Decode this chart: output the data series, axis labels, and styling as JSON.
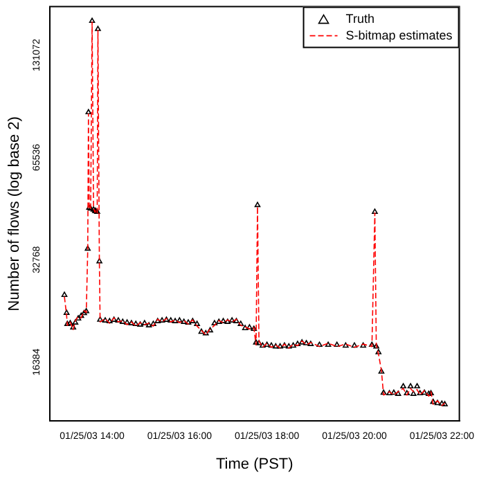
{
  "chart_data": {
    "type": "line",
    "xlabel": "Time (PST)",
    "ylabel": "Number of flows (log base 2)",
    "log": "y",
    "legend": "top right",
    "grid": false,
    "xlim": [
      "--01-25T13:02",
      "--01-25T22:24"
    ],
    "xticks": [
      {
        "value": "--01-25T14:00",
        "label": "01/25/03 14:00"
      },
      {
        "value": "--01-25T16:00",
        "label": "01/25/03 16:00"
      },
      {
        "value": "--01-25T18:00",
        "label": "01/25/03 18:00"
      },
      {
        "value": "--01-25T20:00",
        "label": "01/25/03 20:00"
      },
      {
        "value": "--01-25T22:00",
        "label": "01/25/03 22:00"
      }
    ],
    "ylim": [
      11000,
      182000
    ],
    "yticks": [
      16384,
      32768,
      65536,
      131072
    ],
    "x": [
      "--01-25T13:22",
      "--01-25T13:25",
      "--01-25T13:26",
      "--01-25T13:30",
      "--01-25T13:34",
      "--01-25T13:37",
      "--01-25T13:41",
      "--01-25T13:45",
      "--01-25T13:49",
      "--01-25T13:52",
      "--01-25T13:54",
      "--01-25T13:55",
      "--01-25T13:56",
      "--01-25T13:58",
      "--01-25T14:00",
      "--01-25T14:02",
      "--01-25T14:04",
      "--01-25T14:05",
      "--01-25T14:07",
      "--01-25T14:08",
      "--01-25T14:10",
      "--01-25T14:11",
      "--01-25T14:18",
      "--01-25T14:24",
      "--01-25T14:30",
      "--01-25T14:36",
      "--01-25T14:42",
      "--01-25T14:48",
      "--01-25T14:54",
      "--01-25T15:00",
      "--01-25T15:06",
      "--01-25T15:12",
      "--01-25T15:18",
      "--01-25T15:24",
      "--01-25T15:30",
      "--01-25T15:36",
      "--01-25T15:42",
      "--01-25T15:48",
      "--01-25T15:54",
      "--01-25T16:00",
      "--01-25T16:06",
      "--01-25T16:12",
      "--01-25T16:18",
      "--01-25T16:24",
      "--01-25T16:30",
      "--01-25T16:36",
      "--01-25T16:42",
      "--01-25T16:48",
      "--01-25T16:54",
      "--01-25T17:00",
      "--01-25T17:06",
      "--01-25T17:12",
      "--01-25T17:18",
      "--01-25T17:24",
      "--01-25T17:30",
      "--01-25T17:36",
      "--01-25T17:42",
      "--01-25T17:45",
      "--01-25T17:47",
      "--01-25T17:49",
      "--01-25T17:54",
      "--01-25T18:00",
      "--01-25T18:06",
      "--01-25T18:12",
      "--01-25T18:18",
      "--01-25T18:24",
      "--01-25T18:30",
      "--01-25T18:36",
      "--01-25T18:42",
      "--01-25T18:48",
      "--01-25T18:54",
      "--01-25T19:00",
      "--01-25T19:12",
      "--01-25T19:24",
      "--01-25T19:36",
      "--01-25T19:48",
      "--01-25T20:00",
      "--01-25T20:12",
      "--01-25T20:24",
      "--01-25T20:28",
      "--01-25T20:30",
      "--01-25T20:33",
      "--01-25T20:37",
      "--01-25T20:40",
      "--01-25T20:48",
      "--01-25T20:54",
      "--01-25T21:00",
      "--01-25T21:07",
      "--01-25T21:12",
      "--01-25T21:17",
      "--01-25T21:21",
      "--01-25T21:26",
      "--01-25T21:30",
      "--01-25T21:36",
      "--01-25T21:42",
      "--01-25T21:45",
      "--01-25T21:48",
      "--01-25T21:54",
      "--01-25T22:00",
      "--01-25T22:04"
    ],
    "series": [
      {
        "name": "Truth",
        "type": "scatter",
        "marker": "triangle",
        "color": "#000000",
        "values": [
          25800,
          22850,
          21200,
          21300,
          20700,
          21400,
          22000,
          22400,
          22800,
          23100,
          35290,
          88960,
          46560,
          46300,
          165150,
          46000,
          45600,
          45500,
          45290,
          156300,
          32400,
          21820,
          21700,
          21600,
          21800,
          21700,
          21500,
          21400,
          21300,
          21200,
          21100,
          21300,
          21000,
          21200,
          21600,
          21700,
          21800,
          21700,
          21600,
          21700,
          21500,
          21400,
          21600,
          21200,
          20100,
          19900,
          20300,
          21300,
          21500,
          21600,
          21500,
          21700,
          21600,
          21200,
          20600,
          20700,
          20500,
          18700,
          47430,
          18600,
          18300,
          18400,
          18300,
          18200,
          18200,
          18300,
          18200,
          18300,
          18500,
          18700,
          18600,
          18500,
          18400,
          18400,
          18400,
          18300,
          18300,
          18300,
          18400,
          45290,
          18200,
          17500,
          15350,
          13300,
          13250,
          13300,
          13200,
          13890,
          13250,
          13890,
          13200,
          13890,
          13250,
          13300,
          13200,
          13250,
          12500,
          12400,
          12350,
          12300
        ]
      },
      {
        "name": "S-bitmap estimates",
        "type": "line",
        "line_style": "dashed",
        "color": "#ff0000",
        "values": [
          25500,
          22500,
          21000,
          21500,
          20400,
          21700,
          22300,
          22100,
          23200,
          22900,
          35000,
          88000,
          47000,
          46000,
          164000,
          46400,
          45200,
          45800,
          45000,
          155000,
          32000,
          21500,
          22000,
          21300,
          22100,
          21500,
          21700,
          21100,
          21500,
          20900,
          21400,
          21100,
          21300,
          20900,
          21900,
          21500,
          22000,
          21500,
          21800,
          21400,
          21700,
          21200,
          21800,
          20900,
          20300,
          19700,
          20500,
          21000,
          21700,
          21400,
          21800,
          21500,
          21900,
          21000,
          20800,
          20500,
          20700,
          18400,
          47000,
          18900,
          18100,
          18600,
          18100,
          18400,
          18000,
          18500,
          18000,
          18500,
          18300,
          18900,
          18400,
          18700,
          18200,
          18600,
          18200,
          18500,
          18100,
          18500,
          18200,
          45000,
          18400,
          17300,
          15500,
          13100,
          13400,
          13100,
          13400,
          13700,
          13100,
          13700,
          13400,
          13600,
          13100,
          13500,
          13000,
          13400,
          12300,
          12600,
          12200,
          12400
        ]
      }
    ]
  }
}
